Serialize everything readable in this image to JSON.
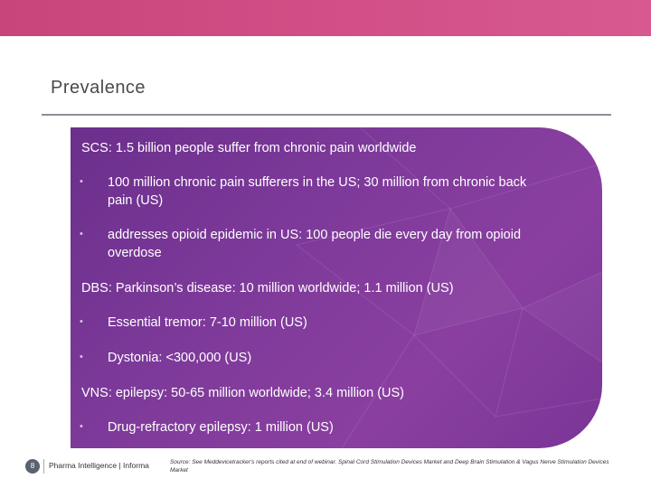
{
  "slide": {
    "title": "Prevalence",
    "page_number": "8",
    "brand": "Pharma Intelligence | Informa",
    "source": "Source: See Meddevicetracker's reports cited at end of webinar. Spinal Cord Stimulation Devices Market and Deep Brain Stimulation & Vagus Nerve Stimulation Devices Market"
  },
  "content": {
    "scs": {
      "heading": "SCS:  1.5 billion people suffer from chronic pain worldwide",
      "bullets": [
        {
          "line1": "100 million chronic pain sufferers in the US; 30 million from chronic back",
          "line2": "pain (US)"
        },
        {
          "line1": "addresses opioid epidemic in US: 100 people die every day from opioid",
          "line2": "overdose"
        }
      ]
    },
    "dbs": {
      "heading": "DBS: Parkinson’s disease: 10 million worldwide; 1.1 million (US)",
      "bullets": [
        "Essential tremor: 7-10 million (US)",
        "Dystonia: <300,000 (US)"
      ]
    },
    "vns": {
      "heading": "VNS: epilepsy:  50-65 million worldwide; 3.4 million (US)",
      "bullets": [
        "Drug-refractory epilepsy: 1 million (US)"
      ]
    },
    "bullet_glyph": "•"
  },
  "colors": {
    "top_bar": "#d14f86",
    "panel": "#7e3a9a"
  }
}
